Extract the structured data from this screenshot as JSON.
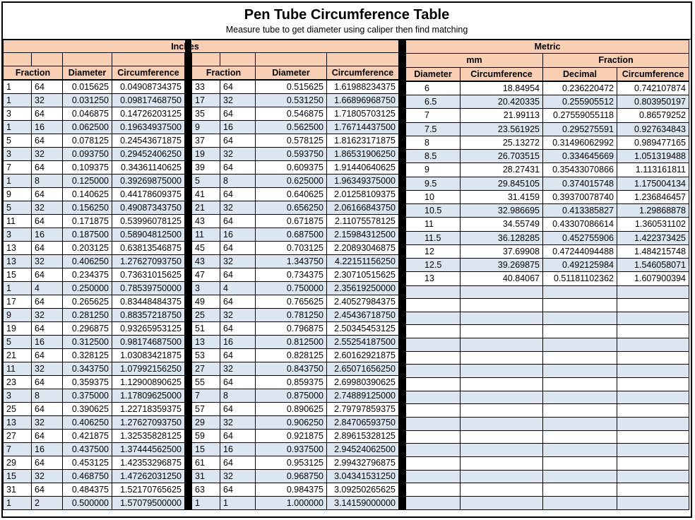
{
  "title": "Pen Tube Circumference Table",
  "subtitle": "Measure tube to get diameter using caliper then find matching",
  "inches": {
    "label": "Inches",
    "headers": [
      "Fraction",
      "Diameter",
      "Circumference"
    ],
    "left_rows": [
      [
        "1",
        "64",
        "0.015625",
        "0.04908734375"
      ],
      [
        "1",
        "32",
        "0.031250",
        "0.09817468750"
      ],
      [
        "3",
        "64",
        "0.046875",
        "0.14726203125"
      ],
      [
        "1",
        "16",
        "0.062500",
        "0.19634937500"
      ],
      [
        "5",
        "64",
        "0.078125",
        "0.24543671875"
      ],
      [
        "3",
        "32",
        "0.093750",
        "0.29452406250"
      ],
      [
        "7",
        "64",
        "0.109375",
        "0.34361140625"
      ],
      [
        "1",
        "8",
        "0.125000",
        "0.39269875000"
      ],
      [
        "9",
        "64",
        "0.140625",
        "0.44178609375"
      ],
      [
        "5",
        "32",
        "0.156250",
        "0.49087343750"
      ],
      [
        "11",
        "64",
        "0.171875",
        "0.53996078125"
      ],
      [
        "3",
        "16",
        "0.187500",
        "0.58904812500"
      ],
      [
        "13",
        "64",
        "0.203125",
        "0.63813546875"
      ],
      [
        "13",
        "32",
        "0.406250",
        "1.27627093750"
      ],
      [
        "15",
        "64",
        "0.234375",
        "0.73631015625"
      ],
      [
        "1",
        "4",
        "0.250000",
        "0.78539750000"
      ],
      [
        "17",
        "64",
        "0.265625",
        "0.83448484375"
      ],
      [
        "9",
        "32",
        "0.281250",
        "0.88357218750"
      ],
      [
        "19",
        "64",
        "0.296875",
        "0.93265953125"
      ],
      [
        "5",
        "16",
        "0.312500",
        "0.98174687500"
      ],
      [
        "21",
        "64",
        "0.328125",
        "1.03083421875"
      ],
      [
        "11",
        "32",
        "0.343750",
        "1.07992156250"
      ],
      [
        "23",
        "64",
        "0.359375",
        "1.12900890625"
      ],
      [
        "3",
        "8",
        "0.375000",
        "1.17809625000"
      ],
      [
        "25",
        "64",
        "0.390625",
        "1.22718359375"
      ],
      [
        "13",
        "32",
        "0.406250",
        "1.27627093750"
      ],
      [
        "27",
        "64",
        "0.421875",
        "1.32535828125"
      ],
      [
        "7",
        "16",
        "0.437500",
        "1.37444562500"
      ],
      [
        "29",
        "64",
        "0.453125",
        "1.42353296875"
      ],
      [
        "15",
        "32",
        "0.468750",
        "1.47262031250"
      ],
      [
        "31",
        "64",
        "0.484375",
        "1.52170765625"
      ],
      [
        "1",
        "2",
        "0.500000",
        "1.57079500000"
      ]
    ],
    "right_rows": [
      [
        "33",
        "64",
        "0.515625",
        "1.61988234375"
      ],
      [
        "17",
        "32",
        "0.531250",
        "1.66896968750"
      ],
      [
        "35",
        "64",
        "0.546875",
        "1.71805703125"
      ],
      [
        "9",
        "16",
        "0.562500",
        "1.76714437500"
      ],
      [
        "37",
        "64",
        "0.578125",
        "1.81623171875"
      ],
      [
        "19",
        "32",
        "0.593750",
        "1.86531906250"
      ],
      [
        "39",
        "64",
        "0.609375",
        "1.91440640625"
      ],
      [
        "5",
        "8",
        "0.625000",
        "1.96349375000"
      ],
      [
        "41",
        "64",
        "0.640625",
        "2.01258109375"
      ],
      [
        "21",
        "32",
        "0.656250",
        "2.06166843750"
      ],
      [
        "43",
        "64",
        "0.671875",
        "2.11075578125"
      ],
      [
        "11",
        "16",
        "0.687500",
        "2.15984312500"
      ],
      [
        "45",
        "64",
        "0.703125",
        "2.20893046875"
      ],
      [
        "43",
        "32",
        "1.343750",
        "4.22151156250"
      ],
      [
        "47",
        "64",
        "0.734375",
        "2.30710515625"
      ],
      [
        "3",
        "4",
        "0.750000",
        "2.35619250000"
      ],
      [
        "49",
        "64",
        "0.765625",
        "2.40527984375"
      ],
      [
        "25",
        "32",
        "0.781250",
        "2.45436718750"
      ],
      [
        "51",
        "64",
        "0.796875",
        "2.50345453125"
      ],
      [
        "13",
        "16",
        "0.812500",
        "2.55254187500"
      ],
      [
        "53",
        "64",
        "0.828125",
        "2.60162921875"
      ],
      [
        "27",
        "32",
        "0.843750",
        "2.65071656250"
      ],
      [
        "55",
        "64",
        "0.859375",
        "2.69980390625"
      ],
      [
        "7",
        "8",
        "0.875000",
        "2.74889125000"
      ],
      [
        "57",
        "64",
        "0.890625",
        "2.79797859375"
      ],
      [
        "29",
        "32",
        "0.906250",
        "2.84706593750"
      ],
      [
        "59",
        "64",
        "0.921875",
        "2.89615328125"
      ],
      [
        "15",
        "16",
        "0.937500",
        "2.94524062500"
      ],
      [
        "61",
        "64",
        "0.953125",
        "2.99432796875"
      ],
      [
        "31",
        "32",
        "0.968750",
        "3.04341531250"
      ],
      [
        "63",
        "64",
        "0.984375",
        "3.09250265625"
      ],
      [
        "1",
        "1",
        "1.000000",
        "3.14159000000"
      ]
    ]
  },
  "metric": {
    "label": "Metric",
    "group_mm": "mm",
    "group_fraction": "Fraction",
    "headers": [
      "Diameter",
      "Circumference",
      "Decimal",
      "Circumference"
    ],
    "rows": [
      [
        "6",
        "18.84954",
        "0.236220472",
        "0.742107874"
      ],
      [
        "6.5",
        "20.420335",
        "0.255905512",
        "0.803950197"
      ],
      [
        "7",
        "21.99113",
        "0.27559055118",
        "0.86579252"
      ],
      [
        "7.5",
        "23.561925",
        "0.295275591",
        "0.927634843"
      ],
      [
        "8",
        "25.13272",
        "0.31496062992",
        "0.989477165"
      ],
      [
        "8.5",
        "26.703515",
        "0.334645669",
        "1.051319488"
      ],
      [
        "9",
        "28.27431",
        "0.35433070866",
        "1.113161811"
      ],
      [
        "9.5",
        "29.845105",
        "0.374015748",
        "1.175004134"
      ],
      [
        "10",
        "31.4159",
        "0.39370078740",
        "1.236846457"
      ],
      [
        "10.5",
        "32.986695",
        "0.413385827",
        "1.29868878"
      ],
      [
        "11",
        "34.55749",
        "0.43307086614",
        "1.360531102"
      ],
      [
        "11.5",
        "36.128285",
        "0.452755906",
        "1.422373425"
      ],
      [
        "12",
        "37.69908",
        "0.47244094488",
        "1.484215748"
      ],
      [
        "12.5",
        "39.269875",
        "0.492125984",
        "1.546058071"
      ],
      [
        "13",
        "40.84067",
        "0.51181102362",
        "1.607900394"
      ]
    ],
    "total_rows": 32
  }
}
